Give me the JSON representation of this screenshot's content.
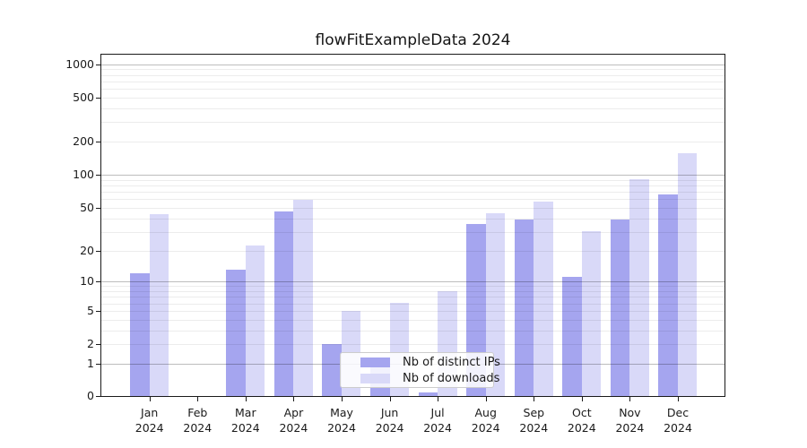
{
  "title": "flowFitExampleData 2024",
  "chart_data": {
    "type": "bar",
    "title": "flowFitExampleData 2024",
    "categories": [
      "Jan 2024",
      "Feb 2024",
      "Mar 2024",
      "Apr 2024",
      "May 2024",
      "Jun 2024",
      "Jul 2024",
      "Aug 2024",
      "Sep 2024",
      "Oct 2024",
      "Nov 2024",
      "Dec 2024"
    ],
    "series": [
      {
        "name": "Nb of distinct IPs",
        "color": "#a5a5ef",
        "values": [
          12,
          0,
          13,
          46,
          2,
          1,
          0.1,
          35,
          39,
          11,
          39,
          66
        ]
      },
      {
        "name": "Nb of downloads",
        "color": "#d9d9f8",
        "values": [
          43,
          0,
          22,
          59,
          5,
          6,
          8,
          44,
          57,
          30,
          91,
          157
        ]
      }
    ],
    "yscale": "log(1+x)",
    "ylim": [
      0,
      1240
    ],
    "yticks": [
      0,
      1,
      2,
      5,
      10,
      20,
      50,
      100,
      200,
      500,
      1000
    ],
    "minor_gridlines": [
      2,
      3,
      4,
      5,
      6,
      7,
      8,
      9,
      20,
      30,
      40,
      50,
      60,
      70,
      80,
      90,
      200,
      300,
      400,
      500,
      600,
      700,
      800,
      900
    ],
    "major_gridlines": [
      1,
      10,
      100,
      1000
    ],
    "grid": "on",
    "xlabel": "",
    "ylabel": "",
    "legend_position": "lower center"
  },
  "colors": {
    "bar_dark": "#a5a5ef",
    "bar_light": "#d9d9f8",
    "axis": "#1a1a1a",
    "background": "#ffffff"
  }
}
